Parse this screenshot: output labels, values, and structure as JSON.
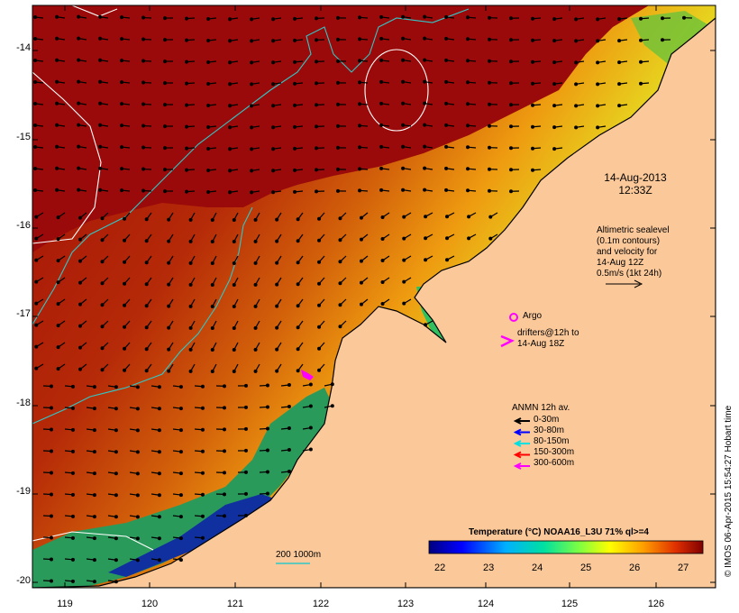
{
  "map": {
    "lat_labels": [
      "-14",
      "-15",
      "-16",
      "-17",
      "-18",
      "-19",
      "-20"
    ],
    "lon_labels": [
      "119",
      "120",
      "121",
      "122",
      "123",
      "124",
      "125",
      "126"
    ],
    "timestamp": [
      "14-Aug-2013",
      "12:33Z"
    ],
    "altimetry_note": [
      "Altimetric sealevel",
      "(0.1m contours)",
      "and velocity for",
      "14-Aug 12Z",
      "0.5m/s (1kt 24h)"
    ],
    "argo_label": "Argo",
    "drifters_label": [
      "drifters@12h to",
      "14-Aug 18Z"
    ],
    "anmn_title": "ANMN 12h av.",
    "anmn_legend": [
      {
        "label": "0-30m",
        "color": "#000000"
      },
      {
        "label": "30-80m",
        "color": "#0000ff"
      },
      {
        "label": "80-150m",
        "color": "#00e0e0"
      },
      {
        "label": "150-300m",
        "color": "#ff0000"
      },
      {
        "label": "300-600m",
        "color": "#ff00ff"
      }
    ],
    "isobath_label": "200  1000m",
    "colorbar_title": "Temperature (°C) NOAA16_L3U 71% ql>=4",
    "colorbar_ticks": [
      "22",
      "23",
      "24",
      "25",
      "26",
      "27"
    ],
    "credit": "© IMOS 06-Apr-2015 15:54:27 Hobart time",
    "colors": {
      "land": "#fbc89a",
      "warm": "#9b0a0a",
      "argo": "#ff00ff",
      "isobath": "#30c8c8"
    }
  }
}
